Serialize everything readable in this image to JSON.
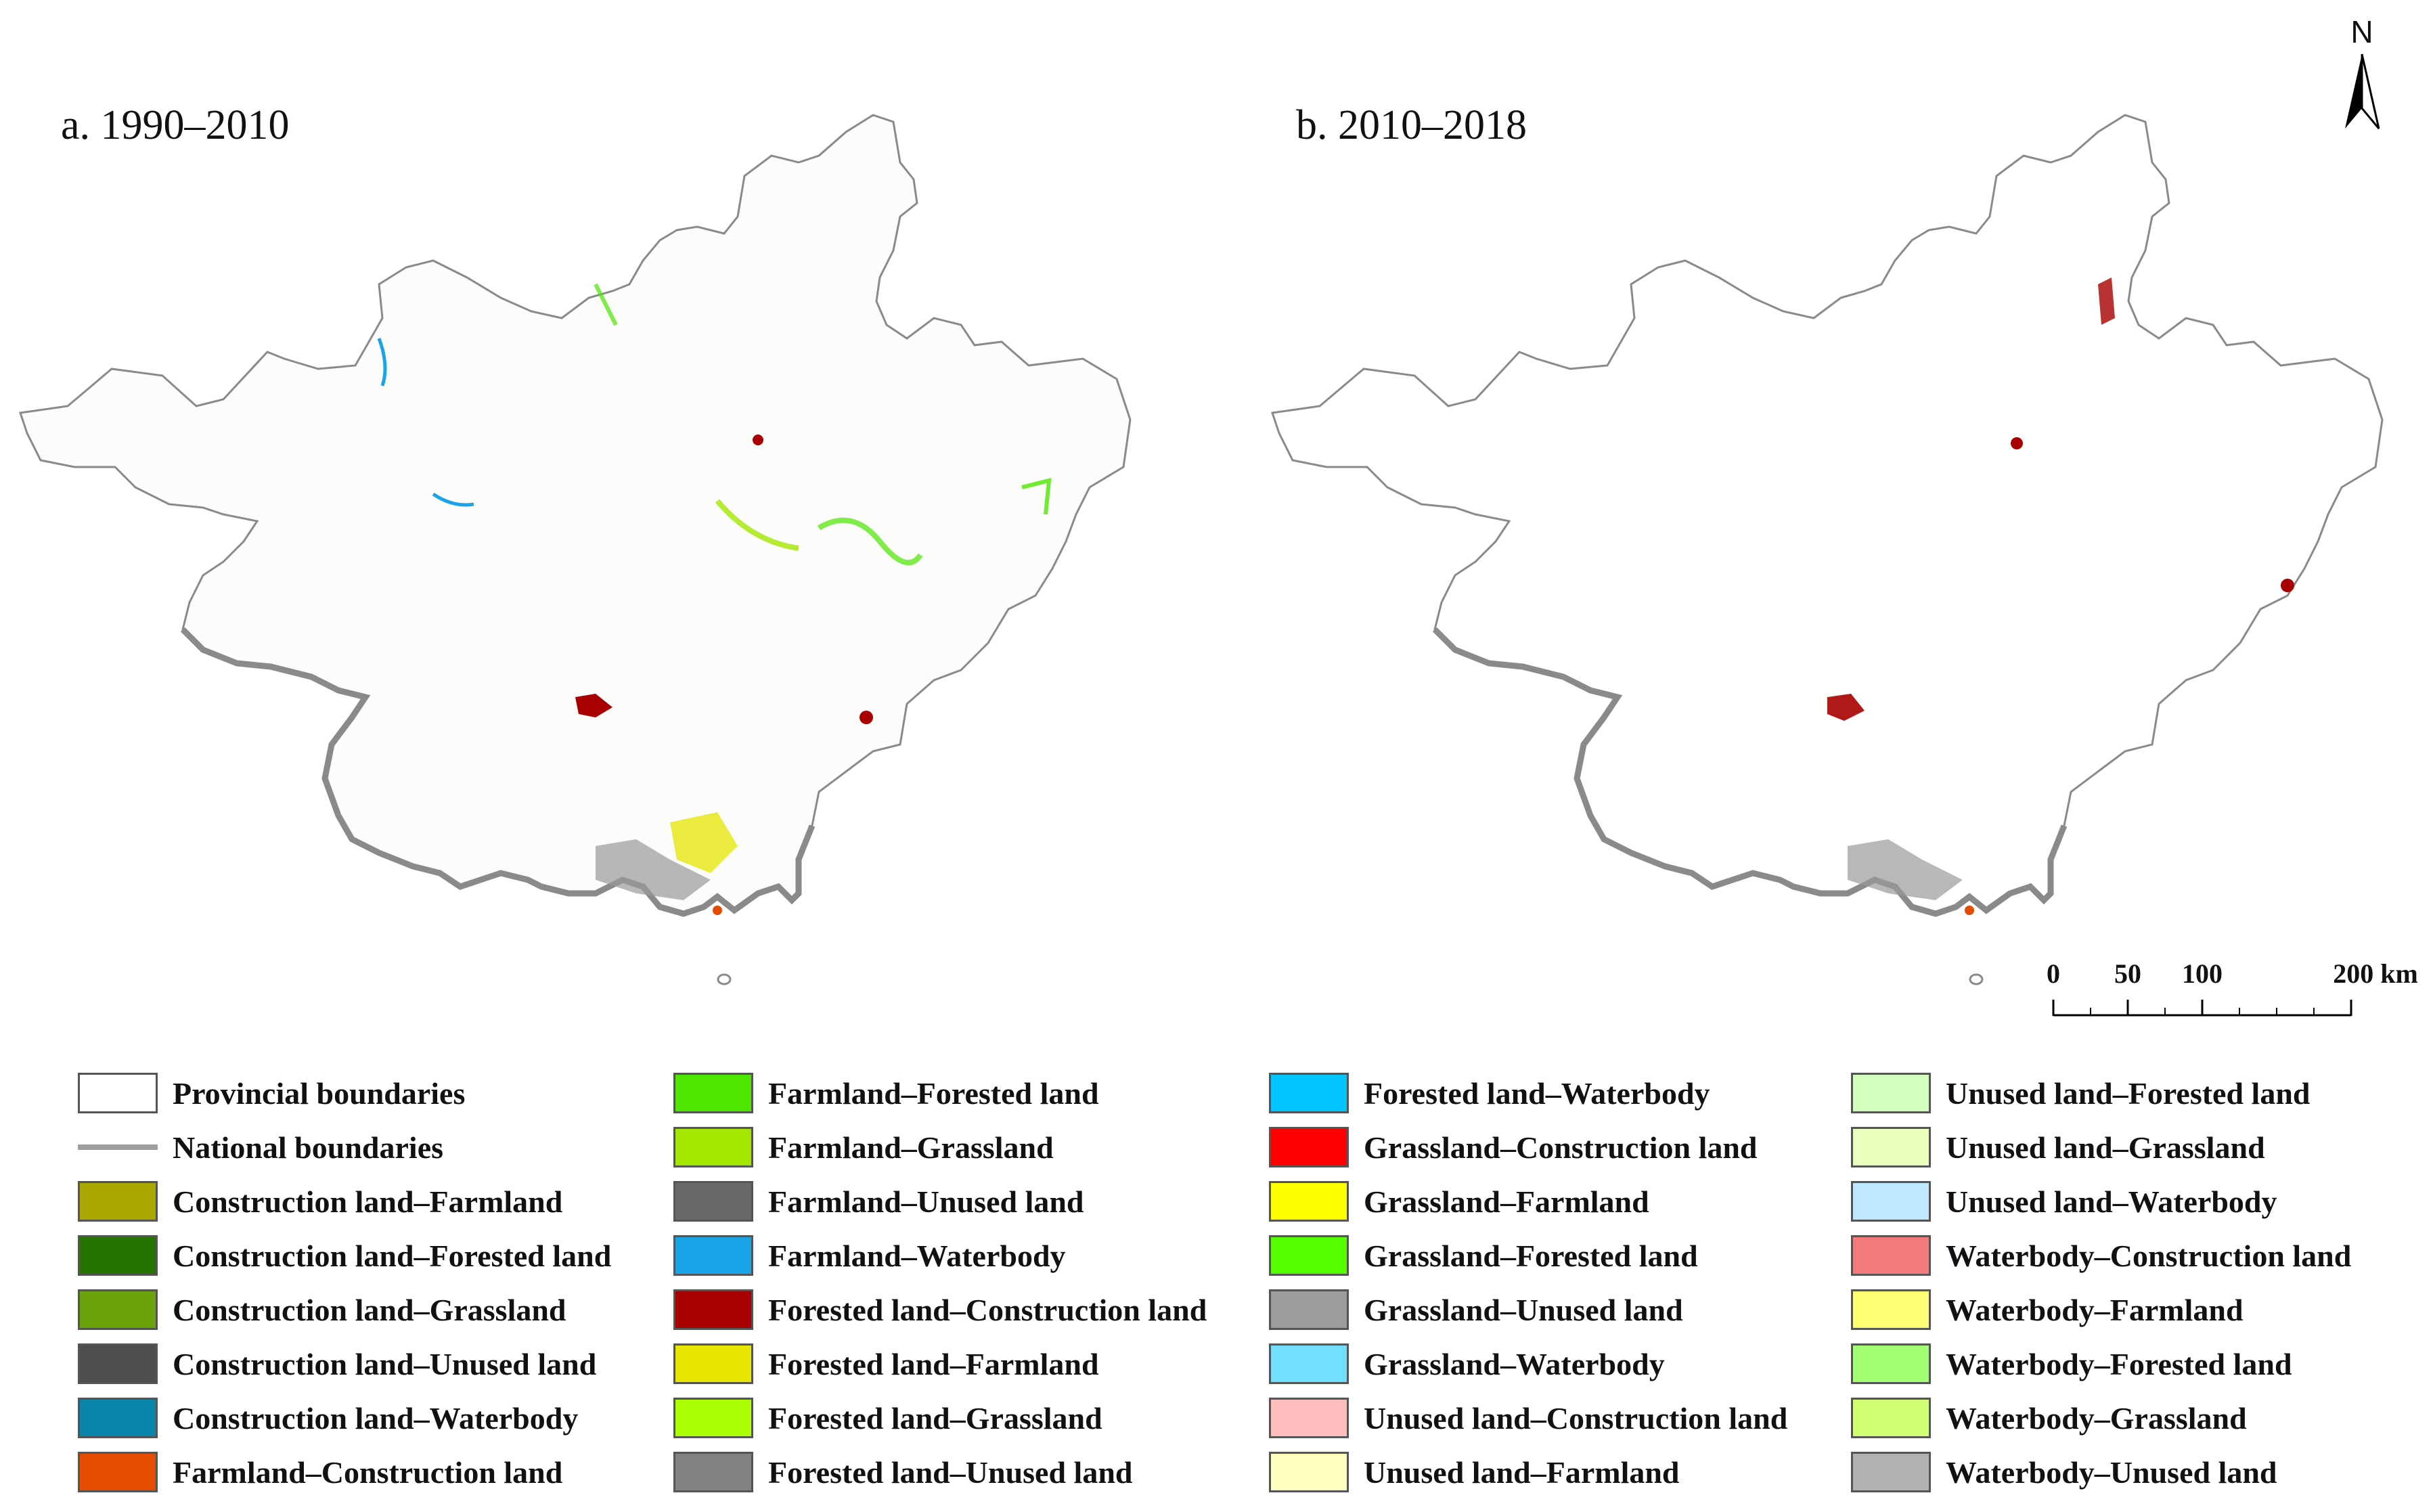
{
  "maps": [
    {
      "title": "a. 1990–2010"
    },
    {
      "title": "b. 2010–2018"
    }
  ],
  "north_arrow": {
    "label": "N"
  },
  "scale_bar": {
    "ticks": [
      "0",
      "50",
      "100",
      "200 km"
    ]
  },
  "legend": {
    "columns": [
      [
        {
          "label": "Provincial boundaries",
          "color": "#ffffff"
        },
        {
          "label": "National boundaries",
          "color": "#9e9e9e",
          "symbol": "line"
        },
        {
          "label": "Construction land–Farmland",
          "color": "#a8a800"
        },
        {
          "label": "Construction land–Forested land",
          "color": "#267300"
        },
        {
          "label": "Construction land–Grassland",
          "color": "#6aa30a"
        },
        {
          "label": "Construction land–Unused land",
          "color": "#4e4e4e"
        },
        {
          "label": "Construction land–Waterbody",
          "color": "#0a84a8"
        },
        {
          "label": "Farmland–Construction land",
          "color": "#e64c00"
        }
      ],
      [
        {
          "label": "Farmland–Forested land",
          "color": "#4ce600"
        },
        {
          "label": "Farmland–Grassland",
          "color": "#a3e600"
        },
        {
          "label": "Farmland–Unused land",
          "color": "#686868"
        },
        {
          "label": "Farmland–Waterbody",
          "color": "#1aa3e6"
        },
        {
          "label": "Forested land–Construction land",
          "color": "#a80000"
        },
        {
          "label": "Forested land–Farmland",
          "color": "#e6e600"
        },
        {
          "label": "Forested land–Grassland",
          "color": "#aaff00"
        },
        {
          "label": "Forested land–Unused land",
          "color": "#828282"
        }
      ],
      [
        {
          "label": "Forested land–Waterbody",
          "color": "#00c5ff"
        },
        {
          "label": "Grassland–Construction land",
          "color": "#ff0000"
        },
        {
          "label": "Grassland–Farmland",
          "color": "#ffff00"
        },
        {
          "label": "Grassland–Forested land",
          "color": "#55ff00"
        },
        {
          "label": "Grassland–Unused land",
          "color": "#9c9c9c"
        },
        {
          "label": "Grassland–Waterbody",
          "color": "#73dfff"
        },
        {
          "label": "Unused land–Construction land",
          "color": "#ffbebe"
        },
        {
          "label": "Unused land–Farmland",
          "color": "#ffffbe"
        }
      ],
      [
        {
          "label": "Unused land–Forested land",
          "color": "#d3ffbe"
        },
        {
          "label": "Unused land–Grassland",
          "color": "#e9ffbe"
        },
        {
          "label": "Unused land–Waterbody",
          "color": "#bee8ff"
        },
        {
          "label": "Waterbody–Construction land",
          "color": "#f57a7a"
        },
        {
          "label": "Waterbody–Farmland",
          "color": "#ffff73"
        },
        {
          "label": "Waterbody–Forested land",
          "color": "#a3ff73"
        },
        {
          "label": "Waterbody–Grassland",
          "color": "#d1ff73"
        },
        {
          "label": "Waterbody–Unused land",
          "color": "#b2b2b2"
        }
      ]
    ]
  }
}
